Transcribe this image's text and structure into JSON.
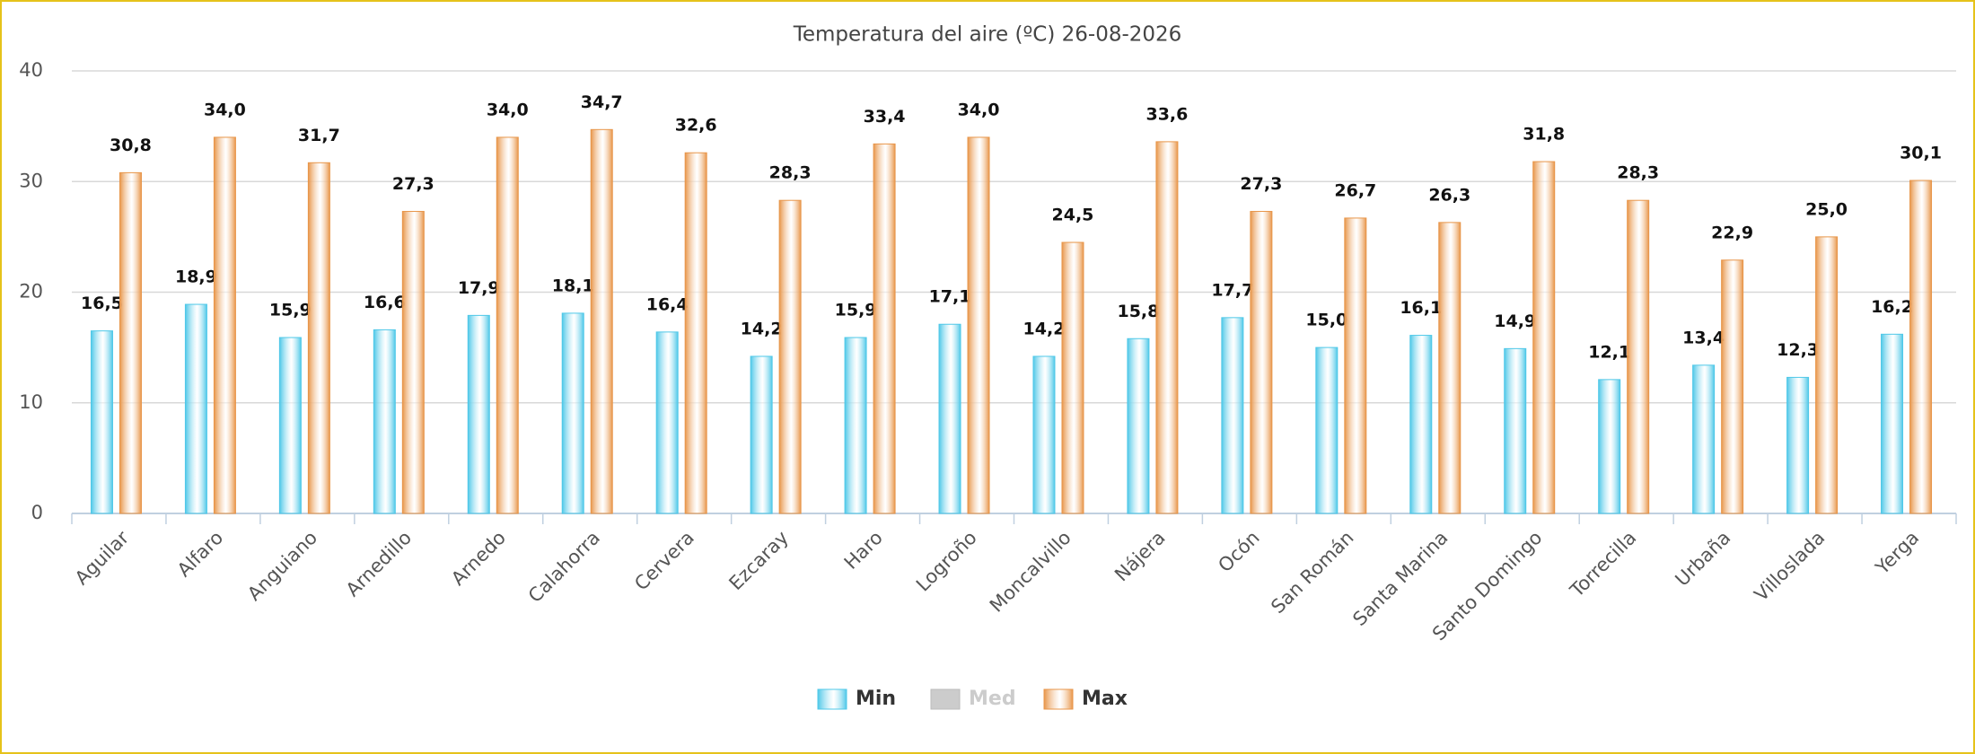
{
  "chart_data": {
    "type": "bar",
    "title": "Temperatura del aire (ºC) 26-08-2026",
    "categories": [
      "Aguilar",
      "Alfaro",
      "Anguiano",
      "Arnedillo",
      "Arnedo",
      "Calahorra",
      "Cervera",
      "Ezcaray",
      "Haro",
      "Logroño",
      "Moncalvillo",
      "Nájera",
      "Ocón",
      "San Román",
      "Santa Marina",
      "Santo Domingo",
      "Torrecilla",
      "Urbaña",
      "Villoslada",
      "Yerga"
    ],
    "series": [
      {
        "name": "Min",
        "color": "#4fc8e8",
        "visible": true,
        "values": [
          16.5,
          18.9,
          15.9,
          16.6,
          17.9,
          18.1,
          16.4,
          14.2,
          15.9,
          17.1,
          14.2,
          15.8,
          17.7,
          15.0,
          16.1,
          14.9,
          12.1,
          13.4,
          12.3,
          16.2
        ],
        "value_labels": [
          "16,5",
          "18,9",
          "15,9",
          "16,6",
          "17,9",
          "18,1",
          "16,4",
          "14,2",
          "15,9",
          "17,1",
          "14,2",
          "15,8",
          "17,7",
          "15,0",
          "16,1",
          "14,9",
          "12,1",
          "13,4",
          "12,3",
          "16,2"
        ]
      },
      {
        "name": "Med",
        "color": "#cccccc",
        "visible": false,
        "values": [
          null,
          null,
          null,
          null,
          null,
          null,
          null,
          null,
          null,
          null,
          null,
          null,
          null,
          null,
          null,
          null,
          null,
          null,
          null,
          null
        ]
      },
      {
        "name": "Max",
        "color": "#e8964a",
        "visible": true,
        "values": [
          30.8,
          34.0,
          31.7,
          27.3,
          34.0,
          34.7,
          32.6,
          28.3,
          33.4,
          34.0,
          24.5,
          33.6,
          27.3,
          26.7,
          26.3,
          31.8,
          28.3,
          22.9,
          25.0,
          30.1
        ],
        "value_labels": [
          "30,8",
          "34,0",
          "31,7",
          "27,3",
          "34,0",
          "34,7",
          "32,6",
          "28,3",
          "33,4",
          "34,0",
          "24,5",
          "33,6",
          "27,3",
          "26,7",
          "26,3",
          "31,8",
          "28,3",
          "22,9",
          "25,0",
          "30,1"
        ]
      }
    ],
    "ylim": [
      0,
      40
    ],
    "yticks": [
      0,
      10,
      20,
      30,
      40
    ],
    "grid": true,
    "legend": "bottom"
  }
}
